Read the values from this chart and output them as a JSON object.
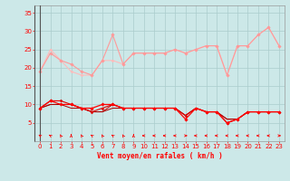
{
  "x": [
    0,
    1,
    2,
    3,
    4,
    5,
    6,
    7,
    8,
    9,
    10,
    11,
    12,
    13,
    14,
    15,
    16,
    17,
    18,
    19,
    20,
    21,
    22,
    23
  ],
  "series_rafales": [
    {
      "y": [
        19,
        24,
        22,
        21,
        19,
        18,
        22,
        29,
        21,
        24,
        24,
        24,
        24,
        25,
        24,
        25,
        26,
        26,
        18,
        26,
        26,
        29,
        31,
        26
      ],
      "color": "#ff9999",
      "linewidth": 0.8,
      "marker": "D",
      "markersize": 1.8,
      "zorder": 3
    },
    {
      "y": [
        19,
        25,
        22,
        19,
        18,
        18,
        22,
        22,
        21,
        24,
        24,
        24,
        24,
        25,
        24,
        25,
        26,
        26,
        18,
        26,
        26,
        29,
        31,
        26
      ],
      "color": "#ffbbbb",
      "linewidth": 0.8,
      "marker": "D",
      "markersize": 1.5,
      "zorder": 2
    }
  ],
  "series_moyen": [
    {
      "y": [
        9,
        11,
        10,
        10,
        9,
        9,
        10,
        10,
        9,
        9,
        9,
        9,
        9,
        9,
        6,
        9,
        8,
        8,
        5,
        6,
        8,
        8,
        8,
        8
      ],
      "color": "#ff0000",
      "linewidth": 0.9,
      "marker": "D",
      "markersize": 1.8,
      "zorder": 5
    },
    {
      "y": [
        9,
        11,
        11,
        10,
        9,
        8,
        9,
        10,
        9,
        9,
        9,
        9,
        9,
        9,
        7,
        9,
        8,
        8,
        5,
        6,
        8,
        8,
        8,
        8
      ],
      "color": "#dd0000",
      "linewidth": 0.8,
      "marker": "D",
      "markersize": 1.5,
      "zorder": 4
    },
    {
      "y": [
        9,
        10,
        10,
        10,
        9,
        8,
        8,
        10,
        9,
        9,
        9,
        9,
        9,
        9,
        7,
        9,
        8,
        8,
        6,
        6,
        8,
        8,
        8,
        8
      ],
      "color": "#cc0000",
      "linewidth": 0.7,
      "marker": null,
      "markersize": 0,
      "zorder": 3
    },
    {
      "y": [
        9,
        10,
        10,
        9,
        9,
        8,
        8,
        9,
        9,
        9,
        9,
        9,
        9,
        9,
        7,
        9,
        8,
        8,
        6,
        6,
        8,
        8,
        8,
        8
      ],
      "color": "#aa0000",
      "linewidth": 0.7,
      "marker": null,
      "markersize": 0,
      "zorder": 3
    }
  ],
  "wind_dir": [
    225,
    225,
    202,
    180,
    202,
    225,
    202,
    225,
    202,
    180,
    270,
    270,
    270,
    270,
    90,
    270,
    270,
    270,
    270,
    270,
    270,
    270,
    270,
    90
  ],
  "xlabel": "Vent moyen/en rafales ( km/h )",
  "ylim": [
    0,
    37
  ],
  "yticks": [
    5,
    10,
    15,
    20,
    25,
    30,
    35
  ],
  "xlim": [
    -0.5,
    23.5
  ],
  "xticks": [
    0,
    1,
    2,
    3,
    4,
    5,
    6,
    7,
    8,
    9,
    10,
    11,
    12,
    13,
    14,
    15,
    16,
    17,
    18,
    19,
    20,
    21,
    22,
    23
  ],
  "background_color": "#cce8e8",
  "grid_color": "#aacccc",
  "tick_color": "#ff0000",
  "label_color": "#ff0000",
  "spine_color": "#999999"
}
